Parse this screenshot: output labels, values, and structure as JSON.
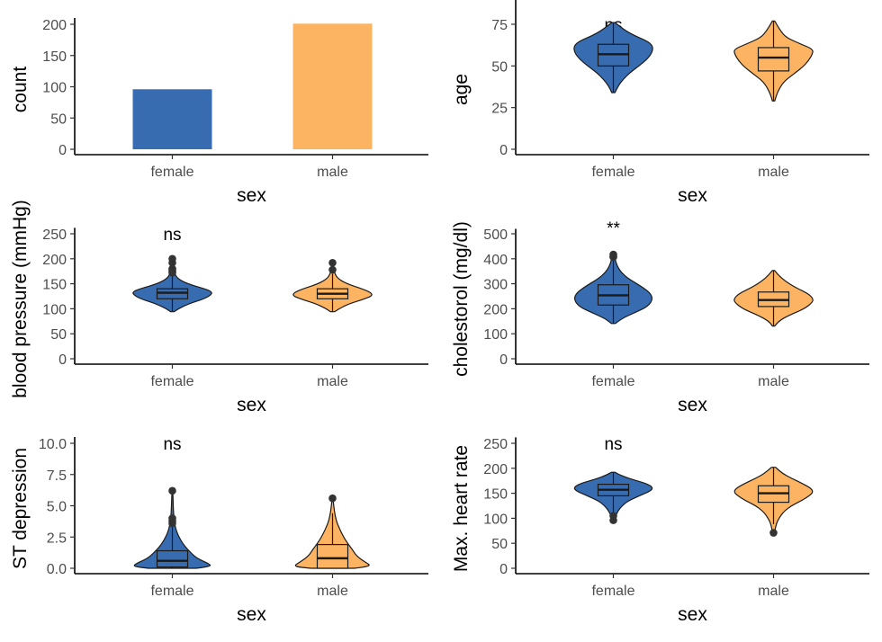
{
  "colors": {
    "female": "#386cb0",
    "male": "#fdb462",
    "outline": "#1a1a1a"
  },
  "chart_data": [
    {
      "id": "count",
      "type": "bar",
      "categories": [
        "female",
        "male"
      ],
      "values": [
        96,
        201
      ],
      "xlabel": "sex",
      "ylabel": "count",
      "ylim": [
        0,
        210
      ],
      "yticks": [
        0,
        50,
        100,
        150,
        200
      ],
      "tick_labels": [
        "0",
        "50",
        "100",
        "150",
        "200"
      ]
    },
    {
      "id": "age",
      "type": "violin",
      "categories": [
        "female",
        "male"
      ],
      "xlabel": "sex",
      "ylabel": "age",
      "ylim": [
        0,
        93
      ],
      "yticks": [
        0,
        25,
        50,
        75
      ],
      "tick_labels": [
        "0",
        "25",
        "50",
        "75"
      ],
      "significance": "ns",
      "groups": [
        {
          "name": "female",
          "min": 34,
          "max": 76,
          "q1": 50,
          "median": 57,
          "q3": 63,
          "whisker_low": 34,
          "whisker_high": 76,
          "outliers": [],
          "density": [
            [
              34,
              0.04
            ],
            [
              38,
              0.12
            ],
            [
              42,
              0.25
            ],
            [
              46,
              0.42
            ],
            [
              50,
              0.65
            ],
            [
              54,
              0.85
            ],
            [
              58,
              0.98
            ],
            [
              62,
              1.0
            ],
            [
              65,
              0.85
            ],
            [
              68,
              0.55
            ],
            [
              71,
              0.32
            ],
            [
              74,
              0.15
            ],
            [
              76,
              0.04
            ]
          ]
        },
        {
          "name": "male",
          "min": 29,
          "max": 77,
          "q1": 47,
          "median": 55,
          "q3": 61,
          "whisker_low": 29,
          "whisker_high": 77,
          "outliers": [],
          "density": [
            [
              29,
              0.03
            ],
            [
              33,
              0.08
            ],
            [
              37,
              0.16
            ],
            [
              41,
              0.28
            ],
            [
              45,
              0.5
            ],
            [
              49,
              0.72
            ],
            [
              53,
              0.88
            ],
            [
              57,
              0.98
            ],
            [
              60,
              1.0
            ],
            [
              63,
              0.7
            ],
            [
              67,
              0.32
            ],
            [
              71,
              0.18
            ],
            [
              74,
              0.1
            ],
            [
              77,
              0.03
            ]
          ]
        }
      ]
    },
    {
      "id": "blood_pressure",
      "type": "violin",
      "categories": [
        "female",
        "male"
      ],
      "xlabel": "sex",
      "ylabel": "blood pressure (mmHg)",
      "ylim": [
        0,
        262
      ],
      "yticks": [
        0,
        50,
        100,
        150,
        200,
        250
      ],
      "tick_labels": [
        "0",
        "50",
        "100",
        "150",
        "200",
        "250"
      ],
      "significance": "ns",
      "groups": [
        {
          "name": "female",
          "min": 94,
          "max": 200,
          "q1": 120,
          "median": 132,
          "q3": 140,
          "whisker_low": 94,
          "whisker_high": 170,
          "outliers": [
            172,
            175,
            178,
            180,
            192,
            200
          ],
          "density": [
            [
              94,
              0.04
            ],
            [
              100,
              0.15
            ],
            [
              110,
              0.42
            ],
            [
              120,
              0.8
            ],
            [
              128,
              0.98
            ],
            [
              134,
              1.0
            ],
            [
              140,
              0.82
            ],
            [
              150,
              0.38
            ],
            [
              160,
              0.14
            ],
            [
              170,
              0.06
            ],
            [
              180,
              0.04
            ],
            [
              190,
              0.02
            ],
            [
              200,
              0.01
            ]
          ]
        },
        {
          "name": "male",
          "min": 94,
          "max": 192,
          "q1": 120,
          "median": 130,
          "q3": 140,
          "whisker_low": 94,
          "whisker_high": 170,
          "outliers": [
            178,
            192
          ],
          "density": [
            [
              94,
              0.05
            ],
            [
              100,
              0.16
            ],
            [
              110,
              0.42
            ],
            [
              120,
              0.82
            ],
            [
              126,
              1.0
            ],
            [
              132,
              0.98
            ],
            [
              140,
              0.75
            ],
            [
              150,
              0.36
            ],
            [
              160,
              0.14
            ],
            [
              170,
              0.06
            ],
            [
              180,
              0.03
            ],
            [
              192,
              0.01
            ]
          ]
        }
      ]
    },
    {
      "id": "cholesterol",
      "type": "violin",
      "categories": [
        "female",
        "male"
      ],
      "xlabel": "sex",
      "ylabel": "cholestorol (mg/dl)",
      "ylim": [
        0,
        520
      ],
      "yticks": [
        0,
        100,
        200,
        300,
        400,
        500
      ],
      "tick_labels": [
        "0",
        "100",
        "200",
        "300",
        "400",
        "500"
      ],
      "significance": "**",
      "groups": [
        {
          "name": "female",
          "min": 141,
          "max": 417,
          "q1": 215,
          "median": 254,
          "q3": 296,
          "whisker_low": 141,
          "whisker_high": 394,
          "outliers": [
            407,
            409,
            417
          ],
          "density": [
            [
              141,
              0.05
            ],
            [
              160,
              0.2
            ],
            [
              185,
              0.55
            ],
            [
              210,
              0.88
            ],
            [
              240,
              1.0
            ],
            [
              265,
              0.92
            ],
            [
              290,
              0.7
            ],
            [
              320,
              0.38
            ],
            [
              345,
              0.2
            ],
            [
              370,
              0.1
            ],
            [
              395,
              0.05
            ],
            [
              417,
              0.02
            ]
          ]
        },
        {
          "name": "male",
          "min": 131,
          "max": 353,
          "q1": 209,
          "median": 235,
          "q3": 267,
          "whisker_low": 131,
          "whisker_high": 353,
          "outliers": [],
          "density": [
            [
              131,
              0.03
            ],
            [
              150,
              0.12
            ],
            [
              175,
              0.4
            ],
            [
              200,
              0.78
            ],
            [
              225,
              0.98
            ],
            [
              240,
              1.0
            ],
            [
              260,
              0.88
            ],
            [
              285,
              0.55
            ],
            [
              310,
              0.3
            ],
            [
              335,
              0.12
            ],
            [
              353,
              0.03
            ]
          ]
        }
      ]
    },
    {
      "id": "st_depression",
      "type": "violin",
      "categories": [
        "female",
        "male"
      ],
      "xlabel": "sex",
      "ylabel": "ST depression",
      "ylim": [
        0,
        10.5
      ],
      "yticks": [
        0,
        2.5,
        5,
        7.5,
        10
      ],
      "tick_labels": [
        "0.0",
        "2.5",
        "5.0",
        "7.5",
        "10.0"
      ],
      "significance": "ns",
      "groups": [
        {
          "name": "female",
          "min": 0,
          "max": 6.2,
          "q1": 0.1,
          "median": 0.6,
          "q3": 1.4,
          "whisker_low": 0,
          "whisker_high": 3.4,
          "outliers": [
            3.6,
            3.8,
            4.0,
            6.2
          ],
          "density": [
            [
              0,
              0.6
            ],
            [
              0.15,
              1.0
            ],
            [
              0.4,
              0.9
            ],
            [
              0.8,
              0.62
            ],
            [
              1.2,
              0.48
            ],
            [
              1.6,
              0.36
            ],
            [
              2.0,
              0.26
            ],
            [
              2.6,
              0.15
            ],
            [
              3.2,
              0.08
            ],
            [
              3.8,
              0.05
            ],
            [
              4.4,
              0.03
            ],
            [
              5.2,
              0.02
            ],
            [
              6.2,
              0.01
            ]
          ]
        },
        {
          "name": "male",
          "min": 0,
          "max": 5.6,
          "q1": 0,
          "median": 0.8,
          "q3": 1.9,
          "whisker_low": 0,
          "whisker_high": 4.4,
          "outliers": [
            5.6
          ],
          "density": [
            [
              0,
              0.55
            ],
            [
              0.15,
              1.0
            ],
            [
              0.5,
              0.82
            ],
            [
              1.0,
              0.6
            ],
            [
              1.5,
              0.5
            ],
            [
              2.0,
              0.38
            ],
            [
              2.5,
              0.28
            ],
            [
              3.0,
              0.2
            ],
            [
              3.5,
              0.13
            ],
            [
              4.0,
              0.08
            ],
            [
              4.5,
              0.05
            ],
            [
              5.0,
              0.03
            ],
            [
              5.6,
              0.01
            ]
          ]
        }
      ]
    },
    {
      "id": "max_heart_rate",
      "type": "violin",
      "categories": [
        "female",
        "male"
      ],
      "xlabel": "sex",
      "ylabel": "Max. heart rate",
      "ylim": [
        0,
        262
      ],
      "yticks": [
        0,
        50,
        100,
        150,
        200,
        250
      ],
      "tick_labels": [
        "0",
        "50",
        "100",
        "150",
        "200",
        "250"
      ],
      "significance": "ns",
      "groups": [
        {
          "name": "female",
          "min": 96,
          "max": 192,
          "q1": 145,
          "median": 157,
          "q3": 168,
          "whisker_low": 111,
          "whisker_high": 192,
          "outliers": [
            96,
            105
          ],
          "density": [
            [
              96,
              0.03
            ],
            [
              105,
              0.06
            ],
            [
              115,
              0.12
            ],
            [
              125,
              0.22
            ],
            [
              135,
              0.38
            ],
            [
              145,
              0.66
            ],
            [
              155,
              0.95
            ],
            [
              162,
              1.0
            ],
            [
              170,
              0.82
            ],
            [
              178,
              0.46
            ],
            [
              186,
              0.18
            ],
            [
              192,
              0.04
            ]
          ]
        },
        {
          "name": "male",
          "min": 71,
          "max": 202,
          "q1": 132,
          "median": 150,
          "q3": 165,
          "whisker_low": 88,
          "whisker_high": 202,
          "outliers": [
            71
          ],
          "density": [
            [
              71,
              0.02
            ],
            [
              85,
              0.06
            ],
            [
              95,
              0.1
            ],
            [
              105,
              0.18
            ],
            [
              115,
              0.28
            ],
            [
              125,
              0.45
            ],
            [
              135,
              0.7
            ],
            [
              145,
              0.9
            ],
            [
              152,
              1.0
            ],
            [
              160,
              0.95
            ],
            [
              170,
              0.72
            ],
            [
              180,
              0.45
            ],
            [
              190,
              0.22
            ],
            [
              202,
              0.05
            ]
          ]
        }
      ]
    }
  ]
}
